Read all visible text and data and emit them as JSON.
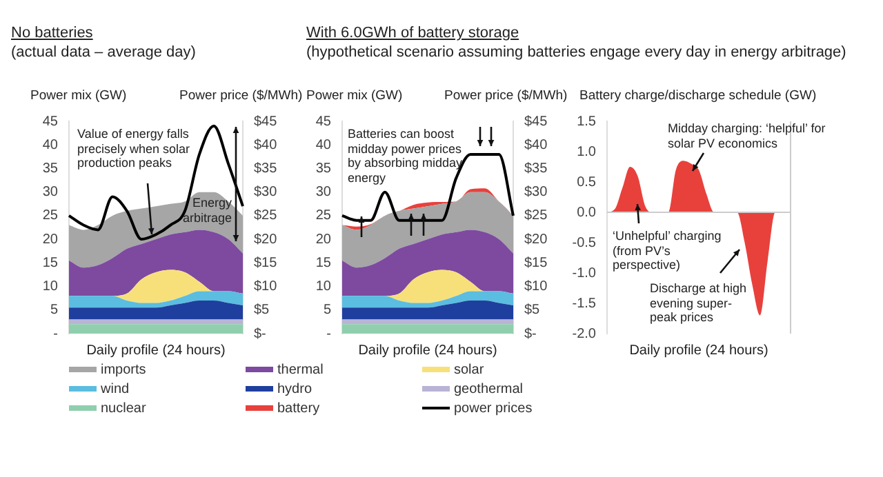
{
  "chart_data": [
    {
      "type": "area",
      "title": "No batteries",
      "subtitle": "(actual data – average day)",
      "xlabel": "Daily profile (24 hours)",
      "ylabel": "Power mix (GW)",
      "y2label": "Power price ($/MWh)",
      "stacked": true,
      "marker": "none",
      "grid": false,
      "tick_labels": "y",
      "categories": [
        null,
        null,
        null,
        null,
        null,
        null,
        null,
        null,
        null,
        null,
        null,
        null,
        null
      ],
      "series": [
        {
          "color": "#8fcfae",
          "values": [
            2,
            2,
            2,
            2,
            2,
            2,
            2,
            2,
            2,
            2,
            2,
            2,
            2
          ]
        },
        {
          "color": "#b9b3d6",
          "values": [
            1,
            1,
            1,
            1,
            1,
            1,
            1,
            1,
            1,
            1,
            1,
            1,
            1
          ]
        },
        {
          "color": "#1f3f9e",
          "values": [
            2.5,
            2.5,
            2.5,
            2.5,
            2.5,
            2.5,
            2.5,
            3,
            3.5,
            4,
            4,
            3.5,
            3
          ]
        },
        {
          "color": "#5bbde0",
          "values": [
            2.5,
            2.5,
            2.5,
            2.5,
            1.5,
            1,
            1,
            1,
            1.5,
            2,
            2,
            2.5,
            2.5
          ]
        },
        {
          "color": "#f7e07a",
          "values": [
            0,
            0,
            0,
            0,
            1.5,
            5,
            6.5,
            6.5,
            5,
            2,
            0,
            0,
            0
          ]
        },
        {
          "color": "#7e4aa0",
          "values": [
            7.5,
            6,
            6.5,
            8,
            9.5,
            7.5,
            7,
            7.5,
            8.5,
            11,
            12.5,
            11,
            8.5
          ]
        },
        {
          "color": "#a6a6a6",
          "values": [
            7.5,
            8,
            8.5,
            9,
            8,
            7.5,
            7,
            6.5,
            6.5,
            8,
            8.5,
            8,
            8
          ]
        },
        {
          "type": "line",
          "axis": "y2",
          "color": "#000000",
          "values": [
            25,
            23,
            22,
            29,
            26,
            20,
            21,
            23,
            26,
            38,
            44,
            36,
            27
          ]
        }
      ],
      "ylim": [
        0,
        45
      ],
      "yticks": [
        {
          "value": 0,
          "label": "-"
        },
        5,
        10,
        15,
        20,
        25,
        30,
        35,
        40,
        45
      ],
      "y2lim": [
        0,
        45
      ],
      "y2ticks": [
        {
          "value": 0,
          "label": "$-"
        },
        {
          "value": 5,
          "label": "$5"
        },
        {
          "value": 10,
          "label": "$10"
        },
        {
          "value": 15,
          "label": "$15"
        },
        {
          "value": 20,
          "label": "$20"
        },
        {
          "value": 25,
          "label": "$25"
        },
        {
          "value": 30,
          "label": "$30"
        },
        {
          "value": 35,
          "label": "$35"
        },
        {
          "value": 40,
          "label": "$40"
        },
        {
          "value": 45,
          "label": "$45"
        }
      ],
      "annotations": [
        "Value of energy falls precisely when solar production peaks",
        "Energy arbitrage"
      ]
    },
    {
      "type": "area",
      "title": "With 6.0GWh of battery storage",
      "subtitle": "(hypothetical scenario assuming batteries engage every day in energy arbitrage)",
      "xlabel": "Daily profile (24 hours)",
      "ylabel": "Power mix (GW)",
      "y2label": "Power price ($/MWh)",
      "stacked": true,
      "marker": "none",
      "grid": false,
      "legend": "bottom",
      "tick_labels": "y",
      "categories": [
        null,
        null,
        null,
        null,
        null,
        null,
        null,
        null,
        null,
        null,
        null,
        null,
        null
      ],
      "series": [
        {
          "name": "nuclear",
          "color": "#8fcfae",
          "values": [
            2,
            2,
            2,
            2,
            2,
            2,
            2,
            2,
            2,
            2,
            2,
            2,
            2
          ]
        },
        {
          "name": "geothermal",
          "color": "#b9b3d6",
          "values": [
            1,
            1,
            1,
            1,
            1,
            1,
            1,
            1,
            1,
            1,
            1,
            1,
            1
          ]
        },
        {
          "name": "hydro",
          "color": "#1f3f9e",
          "values": [
            2.5,
            2.5,
            2.5,
            2.5,
            2.5,
            2.5,
            2.5,
            3,
            3.5,
            4,
            4,
            3.5,
            3
          ]
        },
        {
          "name": "wind",
          "color": "#5bbde0",
          "values": [
            2.5,
            2.5,
            2.5,
            2.5,
            1.5,
            1,
            1,
            1,
            1.5,
            2,
            2,
            2.5,
            2.5
          ]
        },
        {
          "name": "solar",
          "color": "#f7e07a",
          "values": [
            0,
            0,
            0,
            0,
            1.5,
            5,
            6.5,
            6.5,
            5,
            2,
            0,
            0,
            0
          ]
        },
        {
          "name": "thermal",
          "color": "#7e4aa0",
          "values": [
            7.5,
            6,
            6.5,
            8,
            9.5,
            7.5,
            7,
            7.5,
            8.5,
            11,
            12.5,
            11,
            8.5
          ]
        },
        {
          "name": "imports",
          "color": "#a6a6a6",
          "values": [
            7.5,
            8,
            8.5,
            9,
            8,
            7.5,
            7,
            6.5,
            6.5,
            8,
            8.5,
            8,
            8
          ]
        },
        {
          "name": "battery",
          "color": "#e8413c",
          "values": [
            0,
            0.7,
            0.2,
            0,
            0,
            0.8,
            0.8,
            0.4,
            0,
            0.6,
            0.8,
            0,
            0
          ]
        },
        {
          "name": "power prices",
          "type": "line",
          "axis": "y2",
          "color": "#000000",
          "values": [
            25,
            24,
            24,
            30,
            24,
            24,
            24,
            24,
            33,
            38,
            38,
            38,
            25
          ]
        }
      ],
      "ylim": [
        0,
        45
      ],
      "yticks": [
        {
          "value": 0,
          "label": "-"
        },
        5,
        10,
        15,
        20,
        25,
        30,
        35,
        40,
        45
      ],
      "y2lim": [
        0,
        45
      ],
      "y2ticks": [
        {
          "value": 0,
          "label": "$-"
        },
        {
          "value": 5,
          "label": "$5"
        },
        {
          "value": 10,
          "label": "$10"
        },
        {
          "value": 15,
          "label": "$15"
        },
        {
          "value": 20,
          "label": "$20"
        },
        {
          "value": 25,
          "label": "$25"
        },
        {
          "value": 30,
          "label": "$30"
        },
        {
          "value": 35,
          "label": "$35"
        },
        {
          "value": 40,
          "label": "$40"
        },
        {
          "value": 45,
          "label": "$45"
        }
      ],
      "annotations": [
        "Batteries can boost midday power prices by absorbing midday energy"
      ]
    },
    {
      "type": "area",
      "xlabel": "Daily profile (24 hours)",
      "ylabel": "Battery charge/discharge schedule (GW)",
      "marker": "none",
      "grid": false,
      "legend": false,
      "tick_labels": "y",
      "categories": [
        null,
        null,
        null,
        null,
        null,
        null,
        null,
        null,
        null,
        null,
        null,
        null,
        null,
        null,
        null,
        null,
        null,
        null,
        null,
        null,
        null,
        null,
        null,
        null,
        null
      ],
      "series": [
        {
          "color": "#e8413c",
          "values": [
            0,
            0.05,
            0.4,
            0.75,
            0.6,
            0.1,
            0,
            0,
            0,
            0.7,
            0.85,
            0.8,
            0.7,
            0.3,
            0,
            0,
            0,
            0,
            -0.5,
            -1.2,
            -1.7,
            -0.8,
            0,
            0,
            0
          ]
        }
      ],
      "ref_lines": [
        {
          "axis": "y",
          "value": 0,
          "color": "#cccccc"
        }
      ],
      "ylim": [
        -2,
        1.5
      ],
      "yticks": [
        1.5,
        {
          "value": 1,
          "label": "1.0"
        },
        0.5,
        {
          "value": 0,
          "label": "0.0"
        },
        -0.5,
        {
          "value": -1,
          "label": "-1.0"
        },
        -1.5,
        {
          "value": -2,
          "label": "-2.0"
        }
      ],
      "annotations": [
        "Midday charging: ‘helpful’ for solar PV economics",
        "‘Unhelpful’ charging (from PV’s perspective)",
        "Discharge at high evening super-peak prices"
      ]
    }
  ]
}
